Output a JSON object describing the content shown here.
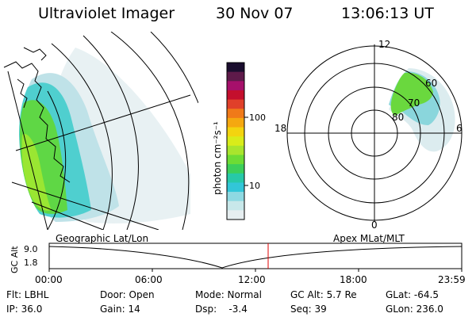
{
  "header": {
    "instrument": "Ultraviolet Imager",
    "date": "30 Nov 07",
    "time": "13:06:13 UT"
  },
  "colorbar": {
    "unit_label": "photon cm⁻²s⁻¹",
    "tick_labels": [
      "100",
      "10"
    ],
    "colors": [
      "#1a0d2e",
      "#5e1a4a",
      "#a6106b",
      "#c40f2d",
      "#e0402a",
      "#f07a19",
      "#f5a810",
      "#f3d40f",
      "#d9ec1a",
      "#a9e52d",
      "#6ddc35",
      "#3ccf5a",
      "#27c9a8",
      "#32c6d8",
      "#8ed9e2",
      "#c8e8ea",
      "#e6eef0"
    ]
  },
  "polar_plot": {
    "hour_labels": [
      "12",
      "18",
      "0",
      "6"
    ],
    "lat_labels": [
      "60",
      "70",
      "80"
    ]
  },
  "timeline": {
    "left_label": "Geographic Lat/Lon",
    "right_label": "Apex  MLat/MLT",
    "axis_title": "GC Alt",
    "y_labels": [
      "9.0",
      "1.8"
    ],
    "x_labels": [
      "00:00",
      "06:00",
      "12:00",
      "18:00",
      "23:59"
    ],
    "marker_color": "#e00000"
  },
  "info": {
    "flt": "Flt: LBHL",
    "door": "Door: Open",
    "mode": "Mode: Normal",
    "gc_alt": "GC Alt: 5.7 Re",
    "glat": "GLat: -64.5",
    "ip": "IP: 36.0",
    "gain": "Gain: 14",
    "dsp": "Dsp:    -3.4",
    "seq": "Seq: 39",
    "glon": "GLon: 236.0"
  }
}
